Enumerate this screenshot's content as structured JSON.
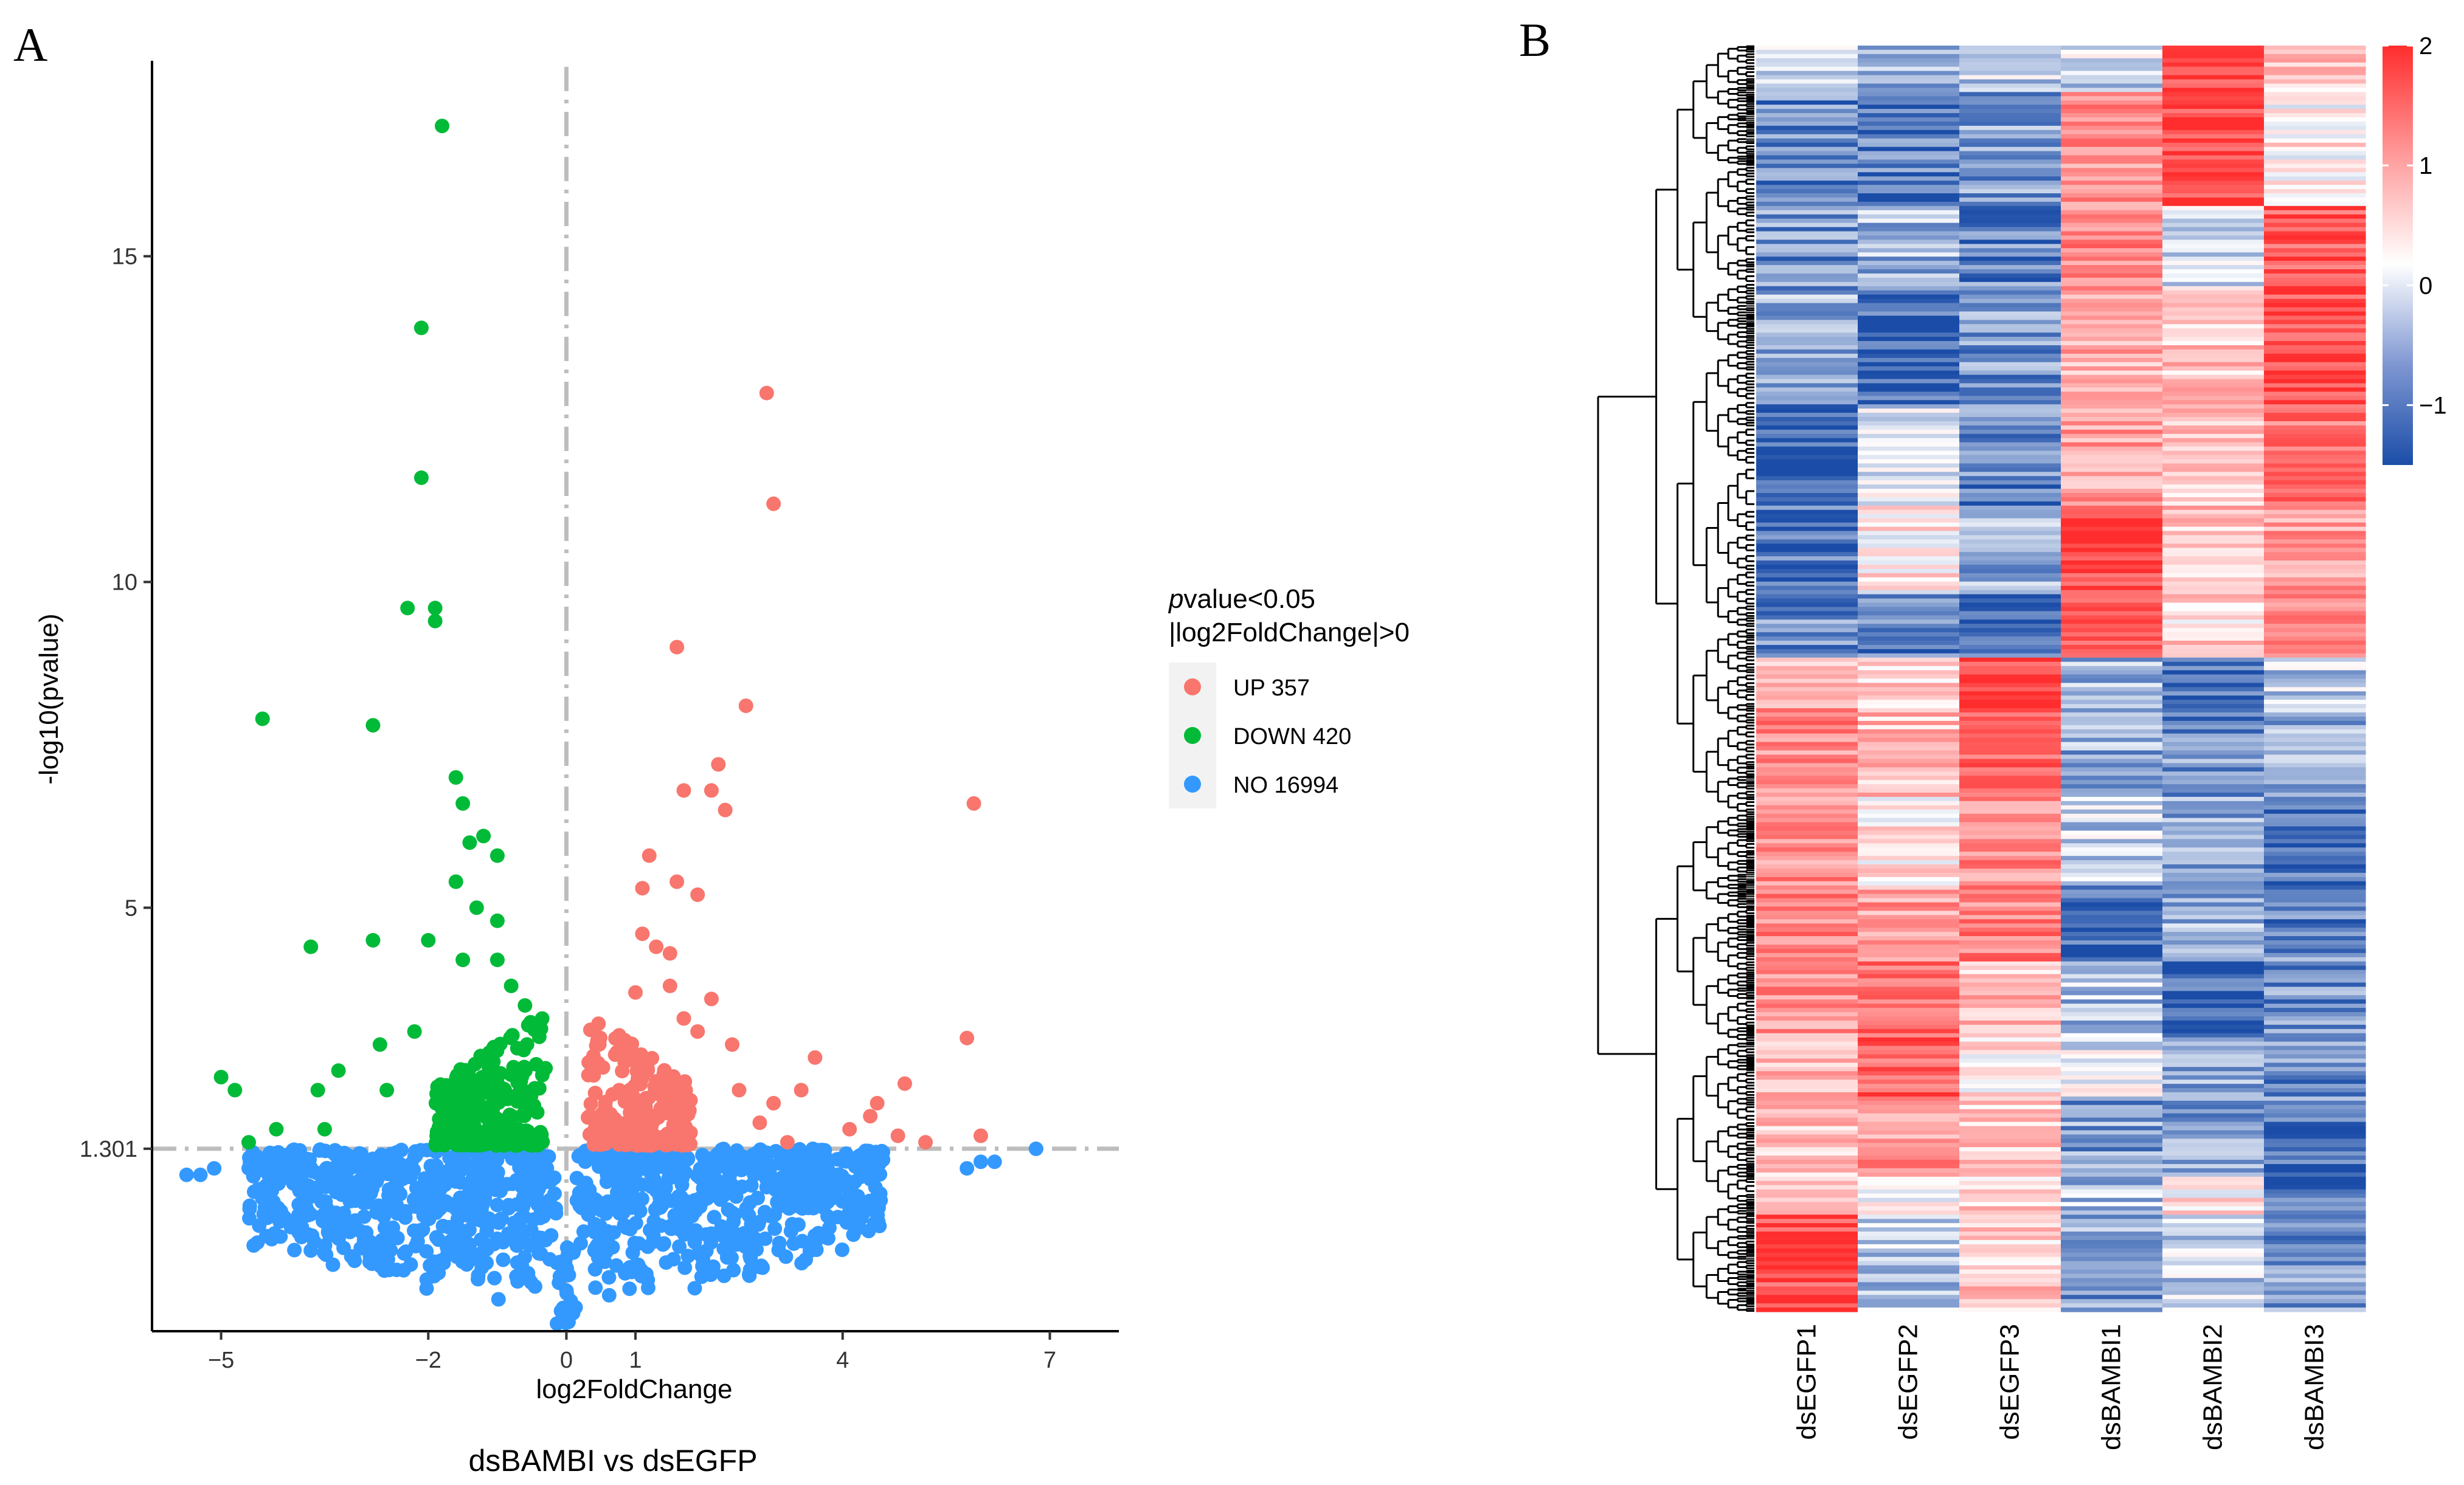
{
  "chart_data": [
    {
      "type": "scatter",
      "panel_label": "A",
      "title": "dsBAMBI vs dsEGFP",
      "xlabel": "log2FoldChange",
      "ylabel": "-log10(pvalue)",
      "xlim": [
        -6,
        8
      ],
      "ylim": [
        -1.5,
        18
      ],
      "x_ticks": [
        -5,
        -2,
        0,
        1,
        4,
        7
      ],
      "x_tick_labels": [
        "−5",
        "−2",
        "0",
        "1",
        "4",
        "7"
      ],
      "y_ticks": [
        1.301,
        5,
        10,
        15
      ],
      "y_tick_labels": [
        "1.301",
        "5",
        "10",
        "15"
      ],
      "threshold_y": 1.301,
      "threshold_x": 0,
      "legend": {
        "title_italic": "p",
        "title_line1": "value<0.05",
        "title_line2": "|log2FoldChange|>0",
        "placement": "right"
      },
      "series": [
        {
          "name": "UP 357",
          "color": "#F8766D",
          "points": [
            [
              2.9,
              12.9
            ],
            [
              3.0,
              11.2
            ],
            [
              1.6,
              9.0
            ],
            [
              2.6,
              8.1
            ],
            [
              2.2,
              7.2
            ],
            [
              2.1,
              6.8
            ],
            [
              1.7,
              6.8
            ],
            [
              2.3,
              6.5
            ],
            [
              5.9,
              6.6
            ],
            [
              1.2,
              5.8
            ],
            [
              1.6,
              5.4
            ],
            [
              1.1,
              5.3
            ],
            [
              1.9,
              5.2
            ],
            [
              1.1,
              4.6
            ],
            [
              1.3,
              4.4
            ],
            [
              1.5,
              4.3
            ],
            [
              1.0,
              3.7
            ],
            [
              1.5,
              3.8
            ],
            [
              1.7,
              3.3
            ],
            [
              2.1,
              3.6
            ],
            [
              5.8,
              3.0
            ],
            [
              1.9,
              3.1
            ],
            [
              2.4,
              2.9
            ],
            [
              3.6,
              2.7
            ],
            [
              4.9,
              2.3
            ],
            [
              4.5,
              2.0
            ],
            [
              4.1,
              1.6
            ],
            [
              4.4,
              1.8
            ],
            [
              6.0,
              1.5
            ],
            [
              5.2,
              1.4
            ],
            [
              3.2,
              1.4
            ],
            [
              4.8,
              1.5
            ],
            [
              2.8,
              1.7
            ],
            [
              3.4,
              2.2
            ],
            [
              2.5,
              2.2
            ],
            [
              3.0,
              2.0
            ]
          ],
          "dense_cloud": {
            "count": 260,
            "x_min": 0.3,
            "x_max": 1.8,
            "y_min": 1.35,
            "y_max": 3.4
          }
        },
        {
          "name": "DOWN 420",
          "color": "#00BA38",
          "points": [
            [
              -1.8,
              17.0
            ],
            [
              -2.1,
              13.9
            ],
            [
              -2.1,
              11.6
            ],
            [
              -2.3,
              9.6
            ],
            [
              -1.9,
              9.6
            ],
            [
              -1.9,
              9.4
            ],
            [
              -4.4,
              7.9
            ],
            [
              -2.8,
              7.8
            ],
            [
              -1.6,
              7.0
            ],
            [
              -1.5,
              6.6
            ],
            [
              -1.2,
              6.1
            ],
            [
              -1.4,
              6.0
            ],
            [
              -1.0,
              5.8
            ],
            [
              -1.6,
              5.4
            ],
            [
              -1.3,
              5.0
            ],
            [
              -1.0,
              4.8
            ],
            [
              -2.8,
              4.5
            ],
            [
              -3.7,
              4.4
            ],
            [
              -2.0,
              4.5
            ],
            [
              -1.5,
              4.2
            ],
            [
              -2.2,
              3.1
            ],
            [
              -2.7,
              2.9
            ],
            [
              -3.3,
              2.5
            ],
            [
              -5.0,
              2.4
            ],
            [
              -4.8,
              2.2
            ],
            [
              -3.6,
              2.2
            ],
            [
              -4.2,
              1.6
            ],
            [
              -4.6,
              1.4
            ],
            [
              -3.5,
              1.6
            ],
            [
              -2.6,
              2.2
            ],
            [
              -0.8,
              3.8
            ],
            [
              -0.6,
              3.5
            ],
            [
              -1.0,
              4.2
            ]
          ],
          "dense_cloud": {
            "count": 270,
            "x_min": -1.9,
            "x_max": -0.3,
            "y_min": 1.35,
            "y_max": 3.4
          }
        },
        {
          "name": "NO 16994",
          "color": "#3399FF",
          "points": [
            [
              -5.5,
              0.9
            ],
            [
              -5.3,
              0.9
            ],
            [
              -5.1,
              1.0
            ],
            [
              -4.6,
              1.0
            ],
            [
              5.8,
              1.0
            ],
            [
              6.0,
              1.1
            ],
            [
              6.2,
              1.1
            ],
            [
              6.8,
              1.3
            ]
          ],
          "dense_cloud": {
            "count": 1100,
            "x_min": -4.6,
            "x_max": 4.6,
            "y_min": -1.4,
            "y_max": 1.3
          }
        }
      ]
    },
    {
      "type": "heatmap",
      "panel_label": "B",
      "columns": [
        "dsEGFP1",
        "dsEGFP2",
        "dsEGFP3",
        "dsBAMBI1",
        "dsBAMBI2",
        "dsBAMBI3"
      ],
      "value_range": [
        -1.5,
        2
      ],
      "colorbar_ticks": [
        2,
        1,
        0,
        -1
      ],
      "colorbar_tick_labels": [
        "2",
        "1",
        "0",
        "−1"
      ],
      "color_low": "#1B4DA8",
      "color_mid": "#FFFFFF",
      "color_high": "#FF2D2D",
      "row_count": 777,
      "row_blocks": [
        {
          "fraction": 0.035,
          "values": [
            -0.2,
            -0.6,
            -0.4,
            -0.3,
            1.8,
            0.5
          ]
        },
        {
          "fraction": 0.09,
          "values": [
            -1.0,
            -1.1,
            -0.8,
            1.0,
            1.7,
            0.2
          ]
        },
        {
          "fraction": 0.065,
          "values": [
            -0.9,
            -0.6,
            -1.0,
            1.2,
            -0.3,
            1.6
          ]
        },
        {
          "fraction": 0.09,
          "values": [
            -0.6,
            -1.3,
            -0.9,
            0.8,
            0.5,
            1.7
          ]
        },
        {
          "fraction": 0.08,
          "values": [
            -1.3,
            -0.2,
            -1.0,
            0.9,
            0.6,
            1.3
          ]
        },
        {
          "fraction": 0.07,
          "values": [
            -1.2,
            0.2,
            -0.7,
            1.8,
            0.6,
            0.9
          ]
        },
        {
          "fraction": 0.05,
          "values": [
            -0.9,
            -1.1,
            -1.3,
            1.4,
            0.4,
            1.1
          ]
        },
        {
          "fraction": 0.04,
          "values": [
            0.7,
            0.5,
            1.8,
            -0.6,
            -1.3,
            -0.4
          ]
        },
        {
          "fraction": 0.07,
          "values": [
            1.1,
            0.6,
            1.6,
            -0.7,
            -0.9,
            -0.7
          ]
        },
        {
          "fraction": 0.07,
          "values": [
            1.0,
            0.3,
            1.1,
            -0.4,
            -0.7,
            -1.3
          ]
        },
        {
          "fraction": 0.06,
          "values": [
            1.2,
            0.9,
            1.2,
            -1.3,
            -0.6,
            -1.0
          ]
        },
        {
          "fraction": 0.06,
          "values": [
            1.0,
            1.3,
            0.6,
            -0.5,
            -1.3,
            -0.9
          ]
        },
        {
          "fraction": 0.05,
          "values": [
            0.6,
            1.5,
            0.3,
            -0.2,
            -0.7,
            -1.0
          ]
        },
        {
          "fraction": 0.06,
          "values": [
            0.5,
            1.0,
            0.5,
            -0.8,
            -0.8,
            -1.2
          ]
        },
        {
          "fraction": 0.03,
          "values": [
            0.3,
            0.1,
            0.4,
            -0.5,
            0.2,
            -1.2
          ]
        },
        {
          "fraction": 0.08,
          "values": [
            1.7,
            -0.5,
            0.5,
            -0.8,
            -0.4,
            -0.9
          ]
        }
      ]
    }
  ]
}
